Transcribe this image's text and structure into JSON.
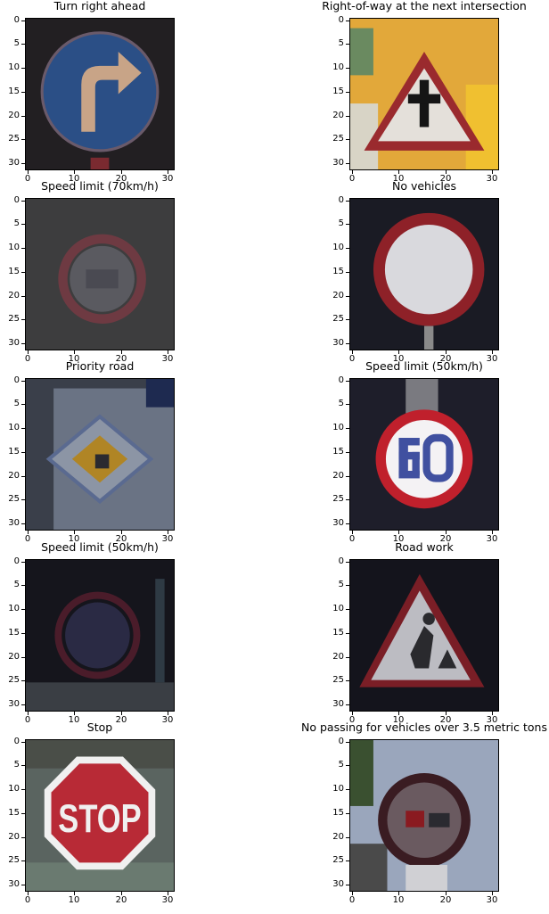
{
  "chart_data": [
    {
      "type": "image",
      "title": "Turn right ahead",
      "xticks": [
        "0",
        "10",
        "20",
        "30"
      ],
      "yticks": [
        "0",
        "5",
        "10",
        "15",
        "20",
        "25",
        "30"
      ],
      "xlim": [
        0,
        32
      ],
      "ylim": [
        32,
        0
      ],
      "colors": {
        "bg": "#221f22",
        "main": "#2b4f86",
        "accent": "#c8a487"
      },
      "icon": "turn-right-arrow-icon"
    },
    {
      "type": "image",
      "title": "Right-of-way at the next intersection",
      "xticks": [
        "0",
        "10",
        "20",
        "30"
      ],
      "yticks": [
        "0",
        "5",
        "10",
        "15",
        "20",
        "25",
        "30"
      ],
      "xlim": [
        0,
        32
      ],
      "ylim": [
        32,
        0
      ],
      "colors": {
        "bg": "#e2a83a",
        "main": "#e4e0da",
        "accent": "#9a2a2e"
      },
      "icon": "right-of-way-triangle-icon"
    },
    {
      "type": "image",
      "title": "Speed limit (70km/h)",
      "xticks": [
        "0",
        "10",
        "20",
        "30"
      ],
      "yticks": [
        "0",
        "5",
        "10",
        "15",
        "20",
        "25",
        "30"
      ],
      "xlim": [
        0,
        32
      ],
      "ylim": [
        32,
        0
      ],
      "colors": {
        "bg": "#3d3d3e",
        "main": "#5a5a60",
        "accent": "#6e3a42"
      },
      "icon": "speed-limit-sign-icon"
    },
    {
      "type": "image",
      "title": "No vehicles",
      "xticks": [
        "0",
        "10",
        "20",
        "30"
      ],
      "yticks": [
        "0",
        "5",
        "10",
        "15",
        "20",
        "25",
        "30"
      ],
      "xlim": [
        0,
        32
      ],
      "ylim": [
        32,
        0
      ],
      "colors": {
        "bg": "#1a1b24",
        "main": "#d9d9dd",
        "accent": "#8e2128"
      },
      "icon": "no-vehicles-sign-icon"
    },
    {
      "type": "image",
      "title": "Priority road",
      "xticks": [
        "0",
        "10",
        "20",
        "30"
      ],
      "yticks": [
        "0",
        "5",
        "10",
        "15",
        "20",
        "25",
        "30"
      ],
      "xlim": [
        0,
        32
      ],
      "ylim": [
        32,
        0
      ],
      "colors": {
        "bg": "#3a3f4a",
        "main": "#8c95a5",
        "accent": "#b08525"
      },
      "icon": "priority-road-diamond-icon"
    },
    {
      "type": "image",
      "title": "Speed limit (50km/h)",
      "xticks": [
        "0",
        "10",
        "20",
        "30"
      ],
      "yticks": [
        "0",
        "5",
        "10",
        "15",
        "20",
        "25",
        "30"
      ],
      "xlim": [
        0,
        32
      ],
      "ylim": [
        32,
        0
      ],
      "colors": {
        "bg": "#1e1e2a",
        "main": "#f4f2f4",
        "accent": "#c0202c"
      },
      "icon": "speed-limit-50-sign-icon"
    },
    {
      "type": "image",
      "title": "Speed limit (50km/h)",
      "xticks": [
        "0",
        "10",
        "20",
        "30"
      ],
      "yticks": [
        "0",
        "5",
        "10",
        "15",
        "20",
        "25",
        "30"
      ],
      "xlim": [
        0,
        32
      ],
      "ylim": [
        32,
        0
      ],
      "colors": {
        "bg": "#15151c",
        "main": "#2a2a44",
        "accent": "#4a1c2a"
      },
      "icon": "speed-limit-dark-sign-icon"
    },
    {
      "type": "image",
      "title": "Road work",
      "xticks": [
        "0",
        "10",
        "20",
        "30"
      ],
      "yticks": [
        "0",
        "5",
        "10",
        "15",
        "20",
        "25",
        "30"
      ],
      "xlim": [
        0,
        32
      ],
      "ylim": [
        32,
        0
      ],
      "colors": {
        "bg": "#14141c",
        "main": "#bcbcc2",
        "accent": "#7a1e26"
      },
      "icon": "road-work-triangle-icon"
    },
    {
      "type": "image",
      "title": "Stop",
      "xticks": [
        "0",
        "10",
        "20",
        "30"
      ],
      "yticks": [
        "0",
        "5",
        "10",
        "15",
        "20",
        "25",
        "30"
      ],
      "xlim": [
        0,
        32
      ],
      "ylim": [
        32,
        0
      ],
      "colors": {
        "bg": "#5a6460",
        "main": "#b82a36",
        "accent": "#f0f0f0"
      },
      "icon": "stop-octagon-icon"
    },
    {
      "type": "image",
      "title": "No passing for vehicles over 3.5 metric tons",
      "xticks": [
        "0",
        "10",
        "20",
        "30"
      ],
      "yticks": [
        "0",
        "5",
        "10",
        "15",
        "20",
        "25",
        "30"
      ],
      "xlim": [
        0,
        32
      ],
      "ylim": [
        32,
        0
      ],
      "colors": {
        "bg": "#9aa6bc",
        "main": "#5a4048",
        "accent": "#3a1c22"
      },
      "icon": "no-passing-trucks-sign-icon"
    }
  ]
}
